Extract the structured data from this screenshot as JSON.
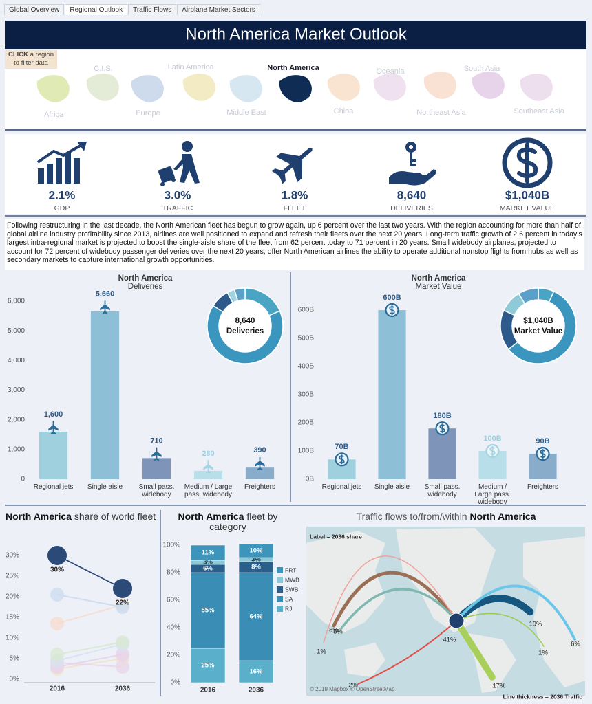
{
  "tabs": [
    "Global Overview",
    "Regional Outlook",
    "Traffic Flows",
    "Airplane Market Sectors"
  ],
  "active_tab": "Regional Outlook",
  "header": {
    "title": "North America Market Outlook"
  },
  "map": {
    "hint_strong": "CLICK",
    "hint": "a region to filter data",
    "selected": "North America",
    "regions": [
      "Africa",
      "C.I.S.",
      "Europe",
      "Latin America",
      "Middle East",
      "North America",
      "China",
      "Oceania",
      "Northeast Asia",
      "South Asia",
      "Southeast Asia"
    ]
  },
  "kpis": [
    {
      "value": "2.1%",
      "label": "GDP"
    },
    {
      "value": "3.0%",
      "label": "TRAFFIC"
    },
    {
      "value": "1.8%",
      "label": "FLEET"
    },
    {
      "value": "8,640",
      "label": "DELIVERIES"
    },
    {
      "value": "$1,040B",
      "label": "MARKET VALUE"
    }
  ],
  "summary": "Following restructuring in the last decade, the North American fleet has begun to grow again, up 6 percent over the last two years. With the region accounting for more than half of global airline industry profitability since 2013, airlines are well positioned to expand and refresh their fleets over the next 20 years. Long-term traffic growth of 2.6 percent in today's largest intra-regional market is projected to boost the single-aisle share of the fleet from 62 percent today to 71 percent in 20 years. Small widebody airplanes, projected to account for 72 percent of widebody passenger deliveries over the next 20 years, offer North American airlines the ability to operate additional nonstop flights from hubs as well as secondary markets to capture international growth opportunities.",
  "chart_data": [
    {
      "type": "bar",
      "title": "North America",
      "subtitle": "Deliveries",
      "categories": [
        "Regional jets",
        "Single aisle",
        "Small pass. widebody",
        "Medium / Large pass. widebody",
        "Freighters"
      ],
      "values": [
        1600,
        5660,
        710,
        280,
        390
      ],
      "value_labels": [
        "1,600",
        "5,660",
        "710",
        "280",
        "390"
      ],
      "colors": [
        "#9fd0de",
        "#8dc0d7",
        "#7e95b9",
        "#b8deea",
        "#88acca"
      ],
      "ylim": [
        0,
        6200
      ],
      "yticks": [
        0,
        {
          "value": 1000,
          "label": "1,000"
        },
        {
          "value": 2000,
          "label": "2,000"
        },
        {
          "value": 3000,
          "label": "3,000"
        },
        {
          "value": 4000,
          "label": "4,000"
        },
        {
          "value": 5000,
          "label": "5,000"
        },
        {
          "value": 6000,
          "label": "6,000"
        }
      ],
      "grid": false,
      "donut_value": "8,640",
      "donut_label": "Deliveries",
      "donut_colors": [
        "#4aa4c4",
        "#3a96be",
        "#2c5a8a",
        "#9fd3e1",
        "#5aa0c8"
      ]
    },
    {
      "type": "bar",
      "title": "North America",
      "subtitle": "Market Value",
      "categories": [
        "Regional jets",
        "Single aisle",
        "Small pass. widebody",
        "Medium / Large pass. widebody",
        "Freighters"
      ],
      "values": [
        70,
        600,
        180,
        100,
        90
      ],
      "value_labels": [
        "70B",
        "600B",
        "180B",
        "100B",
        "90B"
      ],
      "colors": [
        "#9fd0de",
        "#8dc0d7",
        "#7e95b9",
        "#b8deea",
        "#88acca"
      ],
      "ylim": [
        0,
        650
      ],
      "yticks": [
        {
          "value": 0,
          "label": "0B"
        },
        {
          "value": 100,
          "label": "100B"
        },
        {
          "value": 200,
          "label": "200B"
        },
        {
          "value": 300,
          "label": "300B"
        },
        {
          "value": 400,
          "label": "400B"
        },
        {
          "value": 500,
          "label": "500B"
        },
        {
          "value": 600,
          "label": "600B"
        }
      ],
      "grid": false,
      "donut_value": "$1,040B",
      "donut_label": "Market Value",
      "donut_colors": [
        "#4aa4c4",
        "#3a96be",
        "#2c5a8a",
        "#8fcad9",
        "#5aa0c8"
      ]
    },
    {
      "type": "dot-line",
      "title_strong": "North America",
      "title": "share of world fleet",
      "categories": [
        "2016",
        "2036"
      ],
      "series": [
        {
          "color": "#2b4a78",
          "values": [
            30,
            22
          ],
          "value_labels": [
            "30%",
            "22%"
          ]
        },
        {
          "color": "#c9dcf0",
          "values": [
            20.5,
            17.5
          ]
        },
        {
          "color": "#f6dccf",
          "values": [
            13.5,
            18
          ]
        },
        {
          "color": "#d8e8d0",
          "values": [
            6,
            9
          ]
        },
        {
          "color": "#d5e3ef",
          "values": [
            4.5,
            8.5
          ]
        },
        {
          "color": "#ead5ea",
          "values": [
            4,
            3
          ]
        },
        {
          "color": "#e6d1ec",
          "values": [
            3,
            6
          ]
        },
        {
          "color": "#f2e3c9",
          "values": [
            2.5,
            5
          ]
        }
      ],
      "ylim": [
        0,
        33
      ],
      "yticks": [
        {
          "value": 0,
          "label": "0%"
        },
        {
          "value": 5,
          "label": "5%"
        },
        {
          "value": 10,
          "label": "10%"
        },
        {
          "value": 15,
          "label": "15%"
        },
        {
          "value": 20,
          "label": "20%"
        },
        {
          "value": 25,
          "label": "25%"
        },
        {
          "value": 30,
          "label": "30%"
        }
      ],
      "grid": false
    },
    {
      "type": "stacked-bar",
      "title_strong": "North America",
      "title": "fleet by category",
      "categories": [
        "2016",
        "2036"
      ],
      "series": [
        {
          "name": "RJ",
          "color": "#5ab0cb",
          "values": [
            25,
            16
          ],
          "value_labels": [
            "25%",
            "16%"
          ]
        },
        {
          "name": "SA",
          "color": "#3a8db5",
          "values": [
            55,
            64
          ],
          "value_labels": [
            "55%",
            "64%"
          ]
        },
        {
          "name": "SWB",
          "color": "#2b5f8b",
          "values": [
            6,
            8
          ],
          "value_labels": [
            "6%",
            "8%"
          ]
        },
        {
          "name": "MWB",
          "color": "#8cc8d8",
          "values": [
            3,
            3
          ],
          "value_labels": [
            "3%",
            "3%"
          ]
        },
        {
          "name": "FRT",
          "color": "#3d95bb",
          "values": [
            11,
            10
          ],
          "value_labels": [
            "11%",
            "10%"
          ]
        }
      ],
      "ylim": [
        0,
        100
      ],
      "yticks": [
        {
          "value": 0,
          "label": "0%"
        },
        {
          "value": 20,
          "label": "20%"
        },
        {
          "value": 40,
          "label": "40%"
        },
        {
          "value": 60,
          "label": "60%"
        },
        {
          "value": 80,
          "label": "80%"
        },
        {
          "value": 100,
          "label": "100%"
        }
      ],
      "legend": "right"
    },
    {
      "type": "flow-map",
      "title": "Traffic flows to/from/within",
      "title_strong": "North America",
      "note": "Label = 2036 share",
      "values": [
        8,
        5,
        1,
        2,
        41,
        17,
        19,
        1,
        6
      ],
      "value_labels": [
        "8%",
        "5%",
        "1%",
        "2%",
        "41%",
        "17%",
        "19%",
        "1%",
        "6%"
      ],
      "colors": [
        "#9b6f55",
        "#7fb8b0",
        "#f2a09a",
        "#e0504a",
        "#1f3f6e",
        "#a8cf5a",
        "#15577e",
        "#9acd50",
        "#6cc6ea"
      ],
      "attribution": "© 2019 Mapbox © OpenStreetMap",
      "legend_text": "Line thickness = 2036 Traffic"
    }
  ]
}
